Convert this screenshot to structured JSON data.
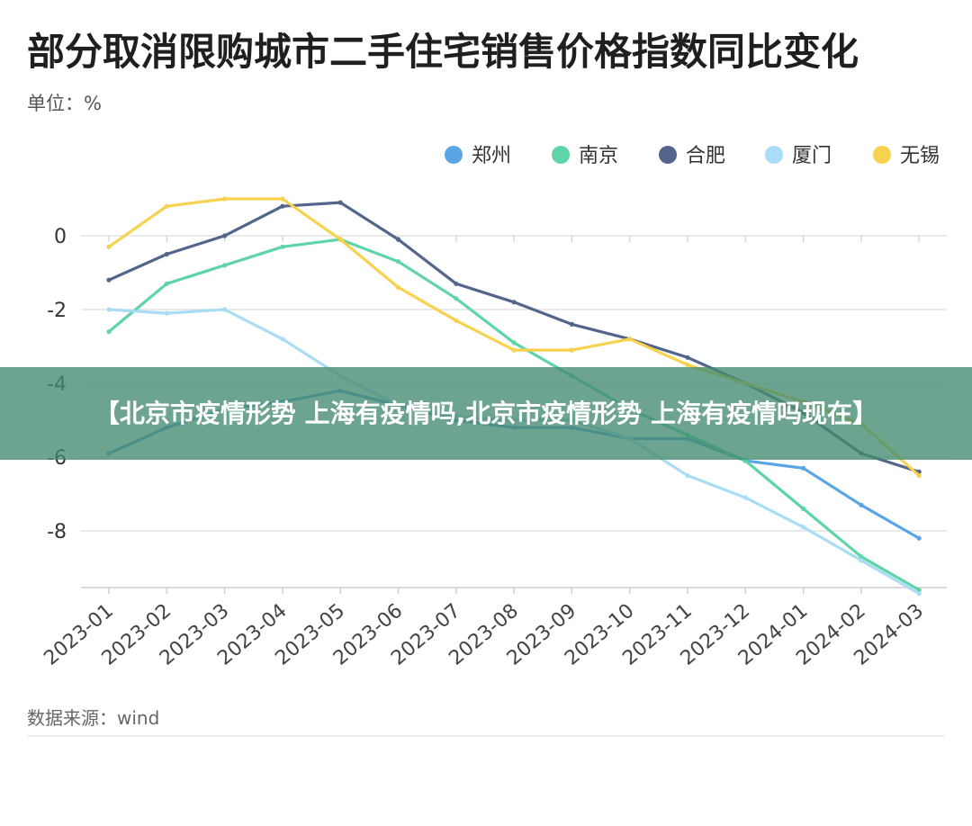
{
  "chart_data": {
    "type": "line",
    "title": "部分取消限购城市二手住宅销售价格指数同比变化",
    "unit_label": "单位：%",
    "source_label": "数据来源：wind",
    "xlabel": "",
    "ylabel": "",
    "ylim": [
      -9.6,
      0
    ],
    "yticks": [
      0,
      -2,
      -4,
      -6,
      -8
    ],
    "grid": true,
    "legend_position": "top-right",
    "categories": [
      "2023-01",
      "2023-02",
      "2023-03",
      "2023-04",
      "2023-05",
      "2023-06",
      "2023-07",
      "2023-08",
      "2023-09",
      "2023-10",
      "2023-11",
      "2023-12",
      "2024-01",
      "2024-02",
      "2024-03"
    ],
    "series": [
      {
        "name": "郑州",
        "color": "#5aa5e6",
        "values": [
          -5.9,
          -5.2,
          -4.7,
          -4.5,
          -4.2,
          -4.6,
          -5.0,
          -5.2,
          -5.2,
          -5.5,
          -5.5,
          -6.1,
          -6.3,
          -7.3,
          -8.2
        ]
      },
      {
        "name": "南京",
        "color": "#5fd4a6",
        "values": [
          -2.6,
          -1.3,
          -0.8,
          -0.3,
          -0.1,
          -0.7,
          -1.7,
          -2.9,
          -3.8,
          -4.7,
          -5.4,
          -6.1,
          -7.4,
          -8.7,
          -9.6
        ]
      },
      {
        "name": "合肥",
        "color": "#53658a",
        "values": [
          -1.2,
          -0.5,
          0.0,
          0.8,
          0.9,
          -0.1,
          -1.3,
          -1.8,
          -2.4,
          -2.8,
          -3.3,
          -4.0,
          -4.8,
          -5.9,
          -6.4
        ]
      },
      {
        "name": "厦门",
        "color": "#a8ddf5",
        "values": [
          -2.0,
          -2.1,
          -2.0,
          -2.8,
          -3.8,
          -4.6,
          -4.9,
          -5.0,
          -5.0,
          -5.5,
          -6.5,
          -7.1,
          -7.9,
          -8.8,
          -9.7
        ]
      },
      {
        "name": "无锡",
        "color": "#f7d24e",
        "values": [
          -0.3,
          0.8,
          1.0,
          1.0,
          -0.1,
          -1.4,
          -2.3,
          -3.1,
          -3.1,
          -2.8,
          -3.5,
          -4.0,
          -4.5,
          -5.1,
          -6.5
        ]
      }
    ]
  },
  "overlay": {
    "headline": "【北京市疫情形势 上海有疫情吗,北京市疫情形势 上海有疫情吗现在】"
  }
}
